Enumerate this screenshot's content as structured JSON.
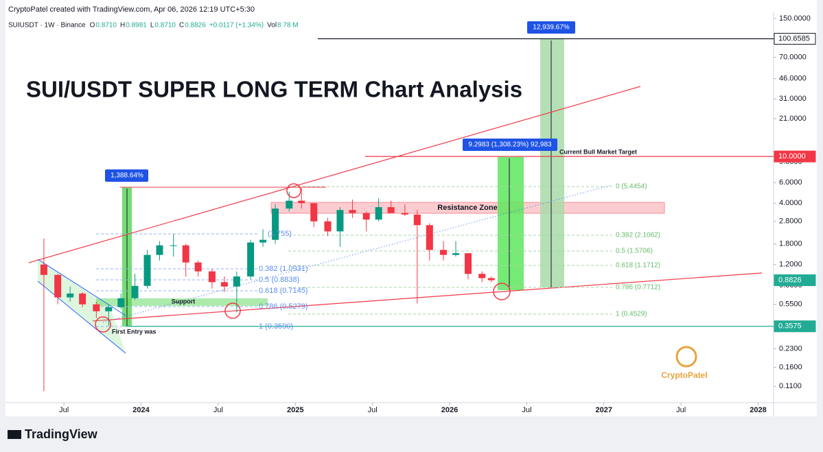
{
  "header": {
    "credit": "CryptoPatel created with TradingView.com, Apr 06, 2026 12:19 UTC+5:30",
    "symbol": "SUIUSDT · 1W · Binance",
    "ohlc": [
      {
        "label": "O",
        "value": "0.8710"
      },
      {
        "label": "H",
        "value": "0.8981"
      },
      {
        "label": "L",
        "value": "0.8710"
      },
      {
        "label": "C",
        "value": "0.8826"
      }
    ],
    "change": "+0.0117 (+1.34%)",
    "volume_label": "Vol",
    "volume": "8.78 M"
  },
  "chart_data": {
    "type": "candlestick",
    "title": "SUI/USDT SUPER LONG TERM Chart Analysis",
    "log_scale": true,
    "up_color": "#089981",
    "down_color": "#f23645",
    "x": [
      2023.37,
      2023.46,
      2023.54,
      2023.62,
      2023.71,
      2023.79,
      2023.87,
      2023.96,
      2024.04,
      2024.12,
      2024.21,
      2024.29,
      2024.37,
      2024.46,
      2024.54,
      2024.62,
      2024.71,
      2024.79,
      2024.87,
      2024.96,
      2025.04,
      2025.12,
      2025.21,
      2025.29,
      2025.37,
      2025.46,
      2025.54,
      2025.62,
      2025.71,
      2025.79,
      2025.87,
      2025.96,
      2026.04,
      2026.12,
      2026.21,
      2026.27
    ],
    "open": [
      1.2,
      0.98,
      0.63,
      0.68,
      0.55,
      0.48,
      0.52,
      0.62,
      0.79,
      1.45,
      1.75,
      1.75,
      1.25,
      1.05,
      0.85,
      0.78,
      0.95,
      1.85,
      1.95,
      3.6,
      4.2,
      4.0,
      2.8,
      2.3,
      3.5,
      3.3,
      2.9,
      3.7,
      3.3,
      3.2,
      2.6,
      1.6,
      1.45,
      1.5,
      1.0,
      0.92
    ],
    "high": [
      2.0,
      1.0,
      0.78,
      0.7,
      0.58,
      0.55,
      0.68,
      1.0,
      1.6,
      1.9,
      2.18,
      1.8,
      1.3,
      1.1,
      0.95,
      1.05,
      1.95,
      2.4,
      3.9,
      5.0,
      5.37,
      4.0,
      3.0,
      3.7,
      4.3,
      3.4,
      4.4,
      4.2,
      3.9,
      3.5,
      2.7,
      1.9,
      1.9,
      1.5,
      1.05,
      0.95
    ],
    "low": [
      0.1,
      0.55,
      0.58,
      0.52,
      0.42,
      0.36,
      0.5,
      0.6,
      0.75,
      1.3,
      1.4,
      0.95,
      0.95,
      0.75,
      0.7,
      0.47,
      0.9,
      1.7,
      1.8,
      3.4,
      3.6,
      2.5,
      2.1,
      1.7,
      3.0,
      2.3,
      2.8,
      3.3,
      3.1,
      0.56,
      1.3,
      1.3,
      1.4,
      0.9,
      0.85,
      0.85
    ],
    "close": [
      0.98,
      0.63,
      0.68,
      0.55,
      0.48,
      0.52,
      0.62,
      0.79,
      1.45,
      1.75,
      1.75,
      1.25,
      1.05,
      0.85,
      0.78,
      0.95,
      1.85,
      1.95,
      3.6,
      4.2,
      4.0,
      2.8,
      2.3,
      3.5,
      3.3,
      2.9,
      3.7,
      3.3,
      3.2,
      2.6,
      1.6,
      1.45,
      1.5,
      1.0,
      0.92,
      0.8826
    ],
    "xlim": [
      2023.13,
      2028.1
    ],
    "xticks": [
      {
        "value": 2023.5,
        "label": "Jul"
      },
      2024,
      {
        "value": 2024.5,
        "label": "Jul"
      },
      2025,
      {
        "value": 2025.5,
        "label": "Jul"
      },
      2026,
      {
        "value": 2026.5,
        "label": "Jul"
      },
      2027,
      {
        "value": 2027.5,
        "label": "Jul"
      },
      2028
    ],
    "ylim": [
      0.08,
      169
    ],
    "yticks": [
      {
        "value": 150,
        "label": "150.0000"
      },
      {
        "value": 70,
        "label": "70.0000"
      },
      {
        "value": 46,
        "label": "46.0000"
      },
      {
        "value": 31,
        "label": "31.0000"
      },
      {
        "value": 21,
        "label": "21.0000"
      },
      {
        "value": 9,
        "label": "9.0000"
      },
      {
        "value": 6,
        "label": "6.0000"
      },
      {
        "value": 4,
        "label": "4.0000"
      },
      {
        "value": 2.8,
        "label": "2.8000"
      },
      {
        "value": 1.8,
        "label": "1.8000"
      },
      {
        "value": 1.2,
        "label": "1.2000"
      },
      {
        "value": 0.8,
        "label": "0.8000"
      },
      {
        "value": 0.55,
        "label": "0.5500"
      },
      {
        "value": 0.23,
        "label": "0.2300"
      },
      {
        "value": 0.16,
        "label": "0.1600"
      },
      {
        "value": 0.11,
        "label": "0.1100"
      }
    ],
    "price_lines": [
      {
        "value": 100.6585,
        "label": "100.6585",
        "color": "#131722"
      },
      {
        "value": 10,
        "label": "10.0000",
        "color": "#f23645"
      },
      {
        "value": 0.8826,
        "label": "0.8826",
        "color": "#22ab94"
      },
      {
        "value": 0.3575,
        "label": "0.3575",
        "color": "#22ab94"
      }
    ],
    "annotations": {
      "gain_total": "12,939.67%",
      "gain_target": "9.2983 (1,308.23%) 92,983",
      "target": "Current Bull Market Target",
      "gain_first": "1,388.64%",
      "resistance": "Resistance Zone",
      "support": "Support",
      "entry": "First Entry was",
      "fib_left": [
        "(1.755)",
        "0.382 (1.0931)",
        "0.5 (0.8838)",
        "0.618 (0.7145)",
        "0.786 (0.5279)",
        "1 (0.3590)"
      ],
      "fib_right": [
        "0 (5.4454)",
        "0.382 (2.1062)",
        "0.5 (1.5706)",
        "0.618 (1.1712)",
        "0.786 (0.7712)",
        "1 (0.4529)"
      ],
      "logo": "CryptoPatel"
    }
  },
  "footer": {
    "brand": "TradingView"
  }
}
